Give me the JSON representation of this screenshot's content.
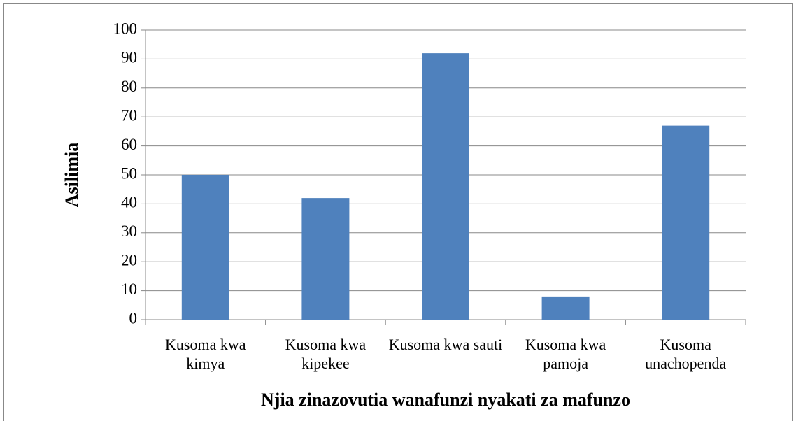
{
  "chart_data": {
    "type": "bar",
    "categories": [
      "Kusoma kwa kimya",
      "Kusoma kwa kipekee",
      "Kusoma kwa sauti",
      "Kusoma kwa pamoja",
      "Kusoma unachopenda"
    ],
    "values": [
      50,
      42,
      92,
      8,
      67
    ],
    "color": "#4f81bd",
    "ylim": [
      0,
      100
    ],
    "yticks": [
      0,
      10,
      20,
      30,
      40,
      50,
      60,
      70,
      80,
      90,
      100
    ],
    "grid": true,
    "y_label": "Asilimia",
    "x_label": "Njia zinazovutia wanafunzi nyakati za mafunzo"
  }
}
